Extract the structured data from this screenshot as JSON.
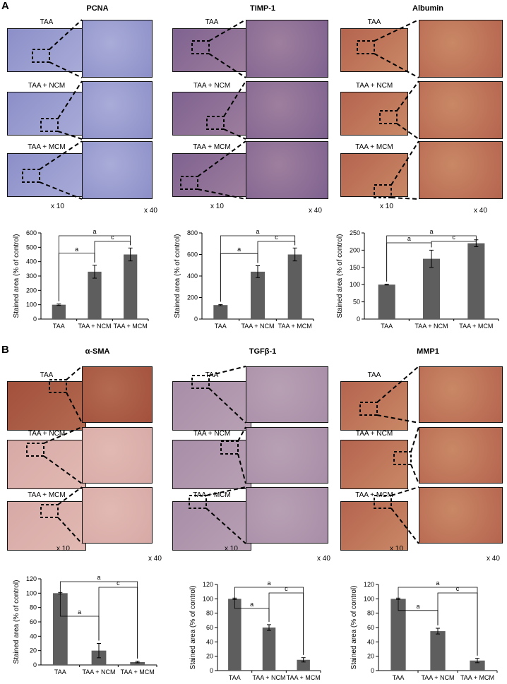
{
  "panels": [
    {
      "letter": "A",
      "columns": [
        {
          "title": "PCNA",
          "tone": "blue",
          "labels": [
            "TAA",
            "TAA + NCM",
            "TAA + MCM"
          ],
          "mag_low": "x 10",
          "mag_high": "x 40"
        },
        {
          "title": "TIMP-1",
          "tone": "purple",
          "labels": [
            "TAA",
            "TAA + NCM",
            "TAA + MCM"
          ],
          "mag_low": "x 10",
          "mag_high": "x 40"
        },
        {
          "title": "Albumin",
          "tone": "red",
          "labels": [
            "TAA",
            "TAA + NCM",
            "TAA + MCM"
          ],
          "mag_low": "x 10",
          "mag_high": "x 40"
        }
      ]
    },
    {
      "letter": "B",
      "columns": [
        {
          "title": "α-SMA",
          "tone": "pink",
          "labels": [
            "TAA",
            "TAA + NCM",
            "TAA + MCM"
          ],
          "mag_low": "x 10",
          "mag_high": "x 40"
        },
        {
          "title": "TGFβ-1",
          "tone": "mixed",
          "labels": [
            "TAA",
            "TAA + NCM",
            "TAA + MCM"
          ],
          "mag_low": "x 10",
          "mag_high": "x 40"
        },
        {
          "title": "MMP1",
          "tone": "red",
          "labels": [
            "TAA",
            "TAA + NCM",
            "TAA + MCM"
          ],
          "mag_low": "x 10",
          "mag_high": "x 40"
        }
      ]
    }
  ],
  "tones": {
    "blue": [
      "#8c8fc8",
      "#a9acd8"
    ],
    "purple": [
      "#7f6290",
      "#9e7f9e"
    ],
    "red": [
      "#b5644e",
      "#c98866"
    ],
    "pink": [
      "#d7a9a6",
      "#e2b9b3"
    ],
    "mixed": [
      "#a88ea8",
      "#b8a0b4"
    ],
    "deep": [
      "#a3503c",
      "#b36a50"
    ]
  },
  "chart_data": [
    {
      "type": "bar",
      "categories": [
        "TAA",
        "TAA + NCM",
        "TAA + MCM"
      ],
      "values": [
        100,
        330,
        450
      ],
      "errors": [
        5,
        45,
        45
      ],
      "ylabel": "Stained area (% of control)",
      "ylim": [
        0,
        600
      ],
      "yticks": [
        0,
        100,
        200,
        300,
        400,
        500,
        600
      ],
      "annotations": [
        "a",
        "a",
        "c"
      ]
    },
    {
      "type": "bar",
      "categories": [
        "TAA",
        "TAA + NCM",
        "TAA + MCM"
      ],
      "values": [
        130,
        440,
        600
      ],
      "errors": [
        5,
        55,
        60
      ],
      "ylabel": "Stained area (% of control)",
      "ylim": [
        0,
        800
      ],
      "yticks": [
        0,
        200,
        400,
        600,
        800
      ],
      "annotations": [
        "a",
        "a",
        "c"
      ]
    },
    {
      "type": "bar",
      "categories": [
        "TAA",
        "TAA + NCM",
        "TAA + MCM"
      ],
      "values": [
        100,
        175,
        220
      ],
      "errors": [
        1,
        25,
        10
      ],
      "ylabel": "Stained area (% of control)",
      "ylim": [
        0,
        250
      ],
      "yticks": [
        0,
        50,
        100,
        150,
        200,
        250
      ],
      "annotations": [
        "a",
        "a",
        "c"
      ]
    },
    {
      "type": "bar",
      "categories": [
        "TAA",
        "TAA + NCM",
        "TAA + MCM"
      ],
      "values": [
        100,
        20,
        4
      ],
      "errors": [
        1,
        10,
        1
      ],
      "ylabel": "Stained area (% of control)",
      "ylim": [
        0,
        120
      ],
      "yticks": [
        0,
        20,
        40,
        60,
        80,
        100,
        120
      ],
      "annotations": [
        "a",
        "a",
        "c"
      ]
    },
    {
      "type": "bar",
      "categories": [
        "TAA",
        "TAA + NCM",
        "TAA + MCM"
      ],
      "values": [
        100,
        60,
        15
      ],
      "errors": [
        1,
        4,
        3
      ],
      "ylabel": "Stained area (% of control)",
      "ylim": [
        0,
        120
      ],
      "yticks": [
        0,
        20,
        40,
        60,
        80,
        100,
        120
      ],
      "annotations": [
        "a",
        "a",
        "c"
      ]
    },
    {
      "type": "bar",
      "categories": [
        "TAA",
        "TAA + NCM",
        "TAA + MCM"
      ],
      "values": [
        100,
        55,
        14
      ],
      "errors": [
        1,
        4,
        3
      ],
      "ylabel": "Stained area (% of control)",
      "ylim": [
        0,
        120
      ],
      "yticks": [
        0,
        20,
        40,
        60,
        80,
        100,
        120
      ],
      "annotations": [
        "a",
        "a",
        "c"
      ]
    }
  ]
}
